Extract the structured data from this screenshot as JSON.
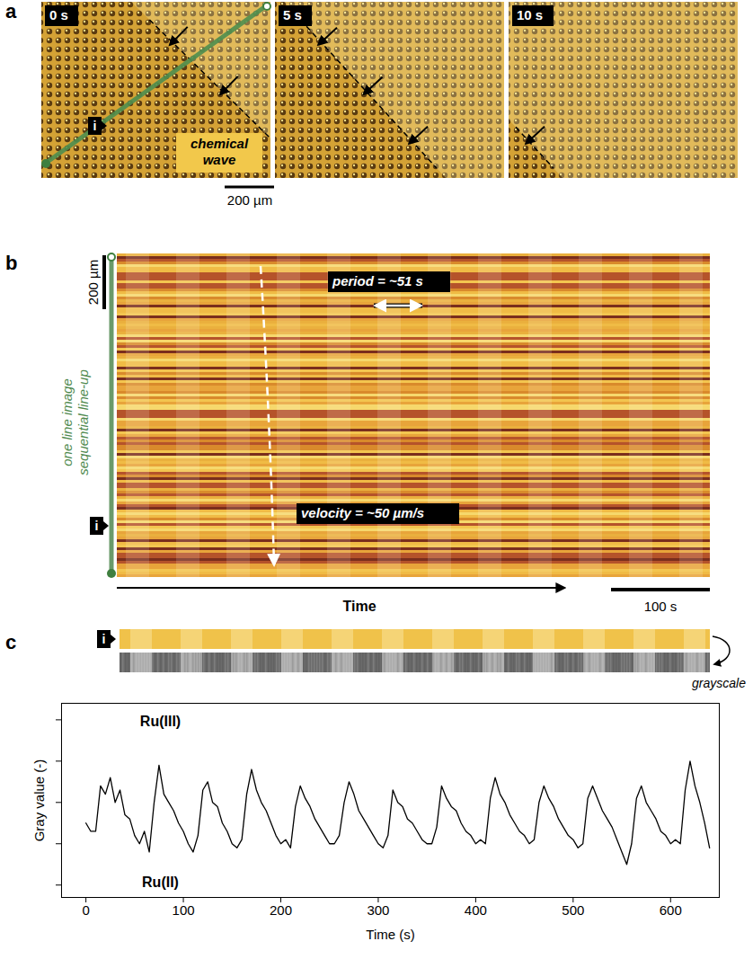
{
  "figure": {
    "panel_a": {
      "letter": "a",
      "frames": [
        "0 s",
        "5 s",
        "10 s"
      ],
      "annotation": "chemical wave",
      "line_label": "i",
      "scale_bar": "200 µm"
    },
    "panel_b": {
      "letter": "b",
      "scale_bar": "200 µm",
      "axis_label": "one line image sequential line-up",
      "line_label": "i",
      "period": "period = ~51 s",
      "velocity": "velocity = ~50 µm/s",
      "x_label": "Time",
      "time_bar": "100 s"
    },
    "panel_c": {
      "letter": "c",
      "line_label": "i",
      "strip_label": "grayscale"
    }
  },
  "chart_data": {
    "type": "line",
    "color": "#000000",
    "xlabel": "Time (s)",
    "ylabel": "Gray value (-)",
    "annotations": [
      "Ru(III)",
      "Ru(II)"
    ],
    "xlim": [
      -25,
      650
    ],
    "xticks": [
      0,
      100,
      200,
      300,
      400,
      500,
      600
    ],
    "ylim": [
      -0.3,
      4.4
    ],
    "yticks": [
      0,
      1,
      2,
      3,
      4
    ],
    "tick_labels": "x",
    "x": [
      0,
      5,
      10,
      15,
      20,
      25,
      30,
      35,
      40,
      45,
      50,
      55,
      60,
      65,
      70,
      75,
      80,
      85,
      90,
      95,
      100,
      105,
      110,
      115,
      120,
      125,
      130,
      135,
      140,
      145,
      150,
      155,
      160,
      165,
      170,
      175,
      180,
      185,
      190,
      195,
      200,
      205,
      210,
      215,
      220,
      225,
      230,
      235,
      240,
      245,
      250,
      255,
      260,
      265,
      270,
      275,
      280,
      285,
      290,
      295,
      300,
      305,
      310,
      315,
      320,
      325,
      330,
      335,
      340,
      345,
      350,
      355,
      360,
      365,
      370,
      375,
      380,
      385,
      390,
      395,
      400,
      405,
      410,
      415,
      420,
      425,
      430,
      435,
      440,
      445,
      450,
      455,
      460,
      465,
      470,
      475,
      480,
      485,
      490,
      495,
      500,
      505,
      510,
      515,
      520,
      525,
      530,
      535,
      540,
      545,
      550,
      555,
      560,
      565,
      570,
      575,
      580,
      585,
      590,
      595,
      600,
      605,
      610,
      615,
      620,
      625,
      630,
      635,
      640
    ],
    "values": [
      1.5,
      1.3,
      1.3,
      2.4,
      2.2,
      2.6,
      2.0,
      2.3,
      1.7,
      1.6,
      1.2,
      1.0,
      1.3,
      0.8,
      2.0,
      2.9,
      2.2,
      2.0,
      1.8,
      1.5,
      1.3,
      1.0,
      0.8,
      1.2,
      2.3,
      2.5,
      2.0,
      1.9,
      1.5,
      1.3,
      1.0,
      0.9,
      1.1,
      2.2,
      2.8,
      2.3,
      2.0,
      1.8,
      1.5,
      1.2,
      1.0,
      1.1,
      0.9,
      1.9,
      2.4,
      2.1,
      1.9,
      1.6,
      1.4,
      1.2,
      1.0,
      1.0,
      1.2,
      2.0,
      2.5,
      2.2,
      1.8,
      1.6,
      1.4,
      1.2,
      1.0,
      0.9,
      1.2,
      2.3,
      2.0,
      1.9,
      1.6,
      1.5,
      1.3,
      1.1,
      1.0,
      1.0,
      1.4,
      2.4,
      2.1,
      1.9,
      1.8,
      1.5,
      1.3,
      1.2,
      1.0,
      1.1,
      1.0,
      2.1,
      2.6,
      2.2,
      2.0,
      1.7,
      1.5,
      1.3,
      1.2,
      1.0,
      1.1,
      2.0,
      2.4,
      2.1,
      1.9,
      1.6,
      1.4,
      1.2,
      1.1,
      0.9,
      1.0,
      2.1,
      2.4,
      2.1,
      1.8,
      1.6,
      1.4,
      1.1,
      0.8,
      0.5,
      1.0,
      2.1,
      2.4,
      2.0,
      1.8,
      1.6,
      1.3,
      1.2,
      1.0,
      1.1,
      1.0,
      2.3,
      3.0,
      2.4,
      2.0,
      1.5,
      0.9
    ]
  }
}
